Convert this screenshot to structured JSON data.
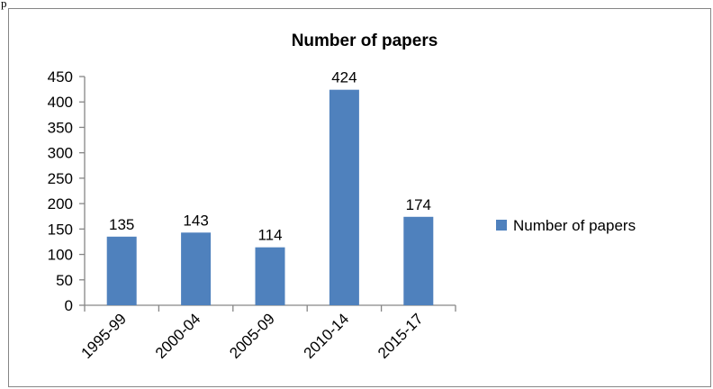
{
  "page": {
    "corner_mark": "p"
  },
  "chart_data": {
    "type": "bar",
    "title": "Number of papers",
    "categories": [
      "1995-99",
      "2000-04",
      "2005-09",
      "2010-14",
      "2015-17"
    ],
    "series": [
      {
        "name": "Number of papers",
        "values": [
          135,
          143,
          114,
          424,
          174
        ]
      }
    ],
    "ylim": [
      0,
      450
    ],
    "yticks": [
      0,
      50,
      100,
      150,
      200,
      250,
      300,
      350,
      400,
      450
    ],
    "data_labels": true,
    "grid": false,
    "legend": "right",
    "colors": {
      "bar": "#4f81bd",
      "axis": "#868686",
      "text": "#000000"
    }
  }
}
